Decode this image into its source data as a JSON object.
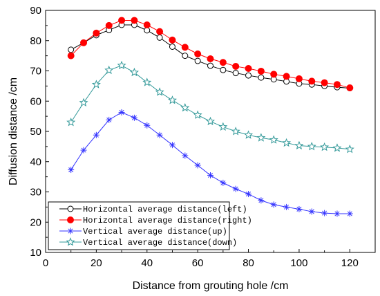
{
  "chart_data": {
    "type": "line",
    "xlabel": "Distance from grouting hole /cm",
    "ylabel": "Diffusion distance /cm",
    "xlim": [
      0,
      130
    ],
    "ylim": [
      10,
      90
    ],
    "xticks": [
      0,
      20,
      40,
      60,
      80,
      100,
      120
    ],
    "yticks": [
      10,
      20,
      30,
      40,
      50,
      60,
      70,
      80,
      90
    ],
    "grid": false,
    "legend_position": "bottom-left",
    "x": [
      10,
      15,
      20,
      25,
      30,
      35,
      40,
      45,
      50,
      55,
      60,
      65,
      70,
      75,
      80,
      85,
      90,
      95,
      100,
      105,
      110,
      115,
      120
    ],
    "series": [
      {
        "name": "Horizontal average distance(left)",
        "marker": "open-circle",
        "color": "#000000",
        "values": [
          77,
          79.3,
          81.8,
          83.5,
          85.2,
          85.2,
          83.4,
          81,
          78,
          75,
          73.3,
          71.7,
          70.3,
          69.3,
          68.5,
          67.8,
          67.2,
          66.5,
          65.8,
          65.5,
          65,
          64.6,
          64.3
        ]
      },
      {
        "name": "Horizontal average distance(right)",
        "marker": "filled-circle",
        "color": "#ff0000",
        "values": [
          75,
          79.3,
          82.5,
          85,
          86.7,
          86.7,
          85.2,
          83,
          80.2,
          77.8,
          75.6,
          74,
          72.8,
          71.5,
          70.8,
          69.9,
          68.9,
          68.2,
          67.4,
          66.6,
          66.1,
          65.5,
          64.4
        ]
      },
      {
        "name": "Vertical average distance(up)",
        "marker": "asterisk",
        "color": "#3333ff",
        "values": [
          37.3,
          43.8,
          48.8,
          53.8,
          56.3,
          54.5,
          52,
          48.8,
          45.5,
          42,
          38.8,
          35.5,
          33,
          31,
          29.3,
          27.2,
          25.8,
          25,
          24.3,
          23.5,
          23,
          22.8,
          22.8
        ]
      },
      {
        "name": "Vertical average distance(down)",
        "marker": "open-star",
        "color": "#339999",
        "values": [
          53,
          59.5,
          65.5,
          70.2,
          71.8,
          69.5,
          66.2,
          63,
          60.3,
          57.8,
          55.4,
          53.3,
          51.5,
          50,
          48.8,
          47.9,
          47.2,
          46.2,
          45.3,
          45,
          44.8,
          44.5,
          44.1
        ]
      }
    ]
  }
}
